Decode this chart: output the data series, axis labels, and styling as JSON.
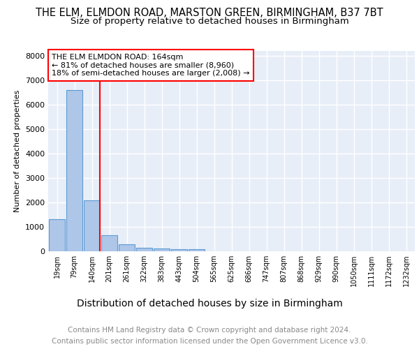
{
  "title": "THE ELM, ELMDON ROAD, MARSTON GREEN, BIRMINGHAM, B37 7BT",
  "subtitle": "Size of property relative to detached houses in Birmingham",
  "xlabel": "Distribution of detached houses by size in Birmingham",
  "ylabel": "Number of detached properties",
  "categories": [
    "19sqm",
    "79sqm",
    "140sqm",
    "201sqm",
    "261sqm",
    "322sqm",
    "383sqm",
    "443sqm",
    "504sqm",
    "565sqm",
    "625sqm",
    "686sqm",
    "747sqm",
    "807sqm",
    "868sqm",
    "929sqm",
    "990sqm",
    "1050sqm",
    "1111sqm",
    "1172sqm",
    "1232sqm"
  ],
  "values": [
    1300,
    6600,
    2080,
    650,
    290,
    140,
    110,
    90,
    90,
    0,
    0,
    0,
    0,
    0,
    0,
    0,
    0,
    0,
    0,
    0,
    0
  ],
  "bar_color": "#aec6e8",
  "bar_edge_color": "#5b9bd5",
  "vline_index": 2,
  "vline_color": "red",
  "annotation_text": "THE ELM ELMDON ROAD: 164sqm\n← 81% of detached houses are smaller (8,960)\n18% of semi-detached houses are larger (2,008) →",
  "annotation_box_color": "white",
  "annotation_box_edge_color": "red",
  "ylim": [
    0,
    8200
  ],
  "yticks": [
    0,
    1000,
    2000,
    3000,
    4000,
    5000,
    6000,
    7000,
    8000
  ],
  "footnote1": "Contains HM Land Registry data © Crown copyright and database right 2024.",
  "footnote2": "Contains public sector information licensed under the Open Government Licence v3.0.",
  "title_fontsize": 10.5,
  "subtitle_fontsize": 9.5,
  "xlabel_fontsize": 10,
  "ylabel_fontsize": 8,
  "background_color": "#e8eef8",
  "grid_color": "#ffffff",
  "footnote_color": "#888888"
}
